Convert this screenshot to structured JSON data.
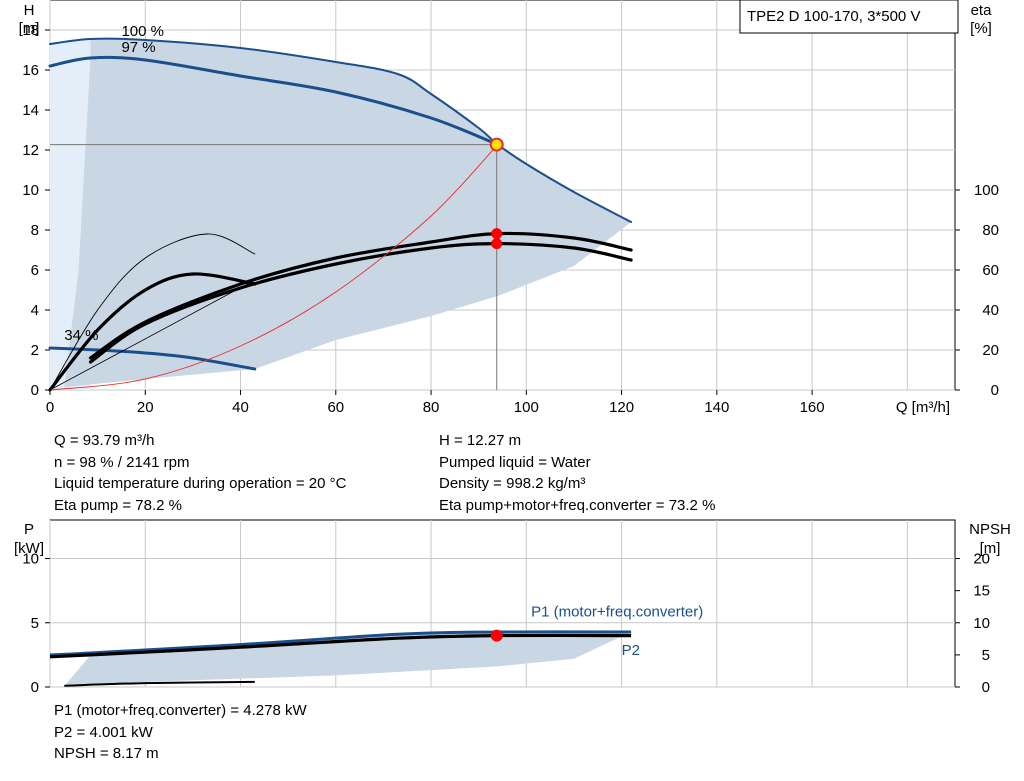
{
  "chart_data": [
    {
      "type": "line",
      "title": "TPE2 D 100-170, 3*500 V",
      "xlabel": "Q [m³/h]",
      "ylabel_left": [
        "H",
        "[m]"
      ],
      "ylabel_right": [
        "eta",
        "[%]"
      ],
      "xlim": [
        0,
        190
      ],
      "ylim": [
        0,
        19.5
      ],
      "y2lim": [
        0,
        195
      ],
      "xticks": [
        0,
        20,
        40,
        60,
        80,
        100,
        120,
        140,
        160
      ],
      "yticks": [
        0,
        2,
        4,
        6,
        8,
        10,
        12,
        14,
        16,
        18
      ],
      "y2ticks": [
        0,
        20,
        40,
        60,
        80,
        100
      ],
      "grid": true,
      "colors": {
        "head": "#1a4f8b",
        "efficiency": "#000000",
        "system": "#e83030",
        "area": "#c9d6e3",
        "area_light": "#e3eef8",
        "grid": "#c8c8c8",
        "op_point_fill": "#ffe000",
        "op_point_ring": "#e83030",
        "marker": "#ff0000"
      },
      "annotations": [
        {
          "text": "100 %",
          "x": 15,
          "y": 17.7
        },
        {
          "text": "97 %",
          "x": 15,
          "y": 16.9
        },
        {
          "text": "34 %",
          "x": 3,
          "y": 2.5
        }
      ],
      "series": [
        {
          "role": "head",
          "label": "100 %",
          "x": [
            0,
            8.5,
            20,
            40,
            60,
            73,
            80,
            90,
            94,
            100,
            110,
            122
          ],
          "y": [
            17.3,
            17.55,
            17.5,
            17.1,
            16.4,
            15.8,
            14.8,
            13.1,
            12.27,
            11.3,
            9.9,
            8.4
          ]
        },
        {
          "role": "head",
          "label": "97 %",
          "x": [
            0,
            8.5,
            20,
            40,
            60,
            80,
            94
          ],
          "y": [
            16.2,
            16.6,
            16.5,
            15.7,
            14.9,
            13.6,
            12.27
          ]
        },
        {
          "role": "head",
          "label": "34 %",
          "x": [
            0,
            10,
            20,
            30,
            43
          ],
          "y": [
            2.1,
            2.0,
            1.85,
            1.6,
            1.05
          ]
        },
        {
          "role": "efficiency",
          "x": [
            8.5,
            20,
            40,
            60,
            80,
            94,
            110,
            122
          ],
          "y": [
            16,
            34,
            53,
            66,
            74,
            78.2,
            76,
            70
          ]
        },
        {
          "role": "efficiency",
          "x": [
            8.5,
            20,
            40,
            60,
            80,
            94,
            110,
            122
          ],
          "y": [
            14,
            33,
            51,
            63,
            71,
            73.2,
            71,
            65
          ]
        },
        {
          "role": "efficiency",
          "x": [
            0,
            10,
            20,
            30,
            43
          ],
          "y": [
            0,
            30,
            50,
            58,
            53
          ]
        },
        {
          "role": "efficiency_thin",
          "x": [
            0,
            10,
            20,
            33,
            43
          ],
          "y": [
            0,
            40,
            66,
            78,
            68
          ]
        },
        {
          "role": "system",
          "x": [
            0,
            20,
            40,
            60,
            80,
            94
          ],
          "y": [
            0,
            0.55,
            2.2,
            4.9,
            8.7,
            12.27
          ]
        }
      ],
      "operating_point": {
        "x": 93.79,
        "y": 12.27
      },
      "eta_markers": [
        78.2,
        73.2
      ]
    },
    {
      "type": "line",
      "ylabel_left": [
        "P",
        "[kW]"
      ],
      "ylabel_right": [
        "NPSH",
        "[m]"
      ],
      "xlim": [
        0,
        190
      ],
      "ylim": [
        0,
        13
      ],
      "y2lim": [
        0,
        26
      ],
      "yticks": [
        0,
        5,
        10
      ],
      "y2ticks": [
        0,
        5,
        10,
        15,
        20
      ],
      "grid": true,
      "series": [
        {
          "name": "P1 (motor+freq.converter)",
          "x": [
            0,
            8.5,
            40,
            73,
            94,
            122
          ],
          "y": [
            2.5,
            2.65,
            3.3,
            4.1,
            4.278,
            4.28
          ]
        },
        {
          "name": "P2",
          "x": [
            0,
            8.5,
            40,
            73,
            94,
            122
          ],
          "y": [
            2.35,
            2.5,
            3.1,
            3.8,
            4.001,
            4.0
          ]
        },
        {
          "x": [
            3,
            20,
            43
          ],
          "y": [
            0.1,
            0.3,
            0.4
          ]
        }
      ],
      "operating_point": {
        "x": 93.79,
        "y": 4.001
      }
    }
  ],
  "readout1": {
    "left": [
      "Q = 93.79 m³/h",
      "n = 98 % / 2141 rpm",
      "Liquid temperature during operation = 20 °C",
      "Eta pump = 78.2 %"
    ],
    "right": [
      "H = 12.27 m",
      "Pumped liquid = Water",
      "Density = 998.2 kg/m³",
      "Eta pump+motor+freq.converter = 73.2 %"
    ]
  },
  "readout2": [
    "P1 (motor+freq.converter) = 4.278 kW",
    "P2 = 4.001 kW",
    "NPSH = 8.17 m"
  ]
}
